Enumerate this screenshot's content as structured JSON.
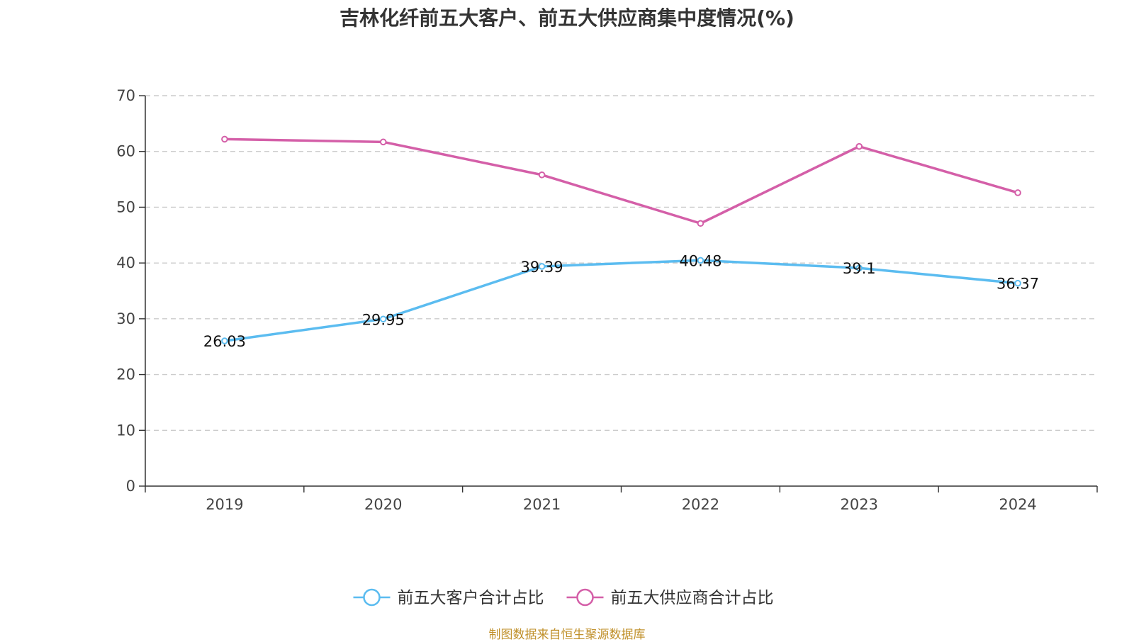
{
  "chart_data": {
    "type": "line",
    "title": "吉林化纤前五大客户、前五大供应商集中度情况(%)",
    "categories": [
      "2019",
      "2020",
      "2021",
      "2022",
      "2023",
      "2024"
    ],
    "ylim": [
      0,
      70
    ],
    "yticks": [
      0,
      10,
      20,
      30,
      40,
      50,
      60,
      70
    ],
    "grid": true,
    "legend_position": "bottom",
    "series": [
      {
        "name": "前五大客户合计占比",
        "color": "#5bbcf0",
        "values": [
          26.03,
          29.95,
          39.39,
          40.48,
          39.1,
          36.37
        ],
        "labels": [
          "26.03",
          "29.95",
          "39.39",
          "40.48",
          "39.1",
          "36.37"
        ],
        "show_labels": true
      },
      {
        "name": "前五大供应商合计占比",
        "color": "#d45fa8",
        "values": [
          62.2,
          61.7,
          55.8,
          47.1,
          60.9,
          52.6
        ],
        "labels": [],
        "show_labels": false
      }
    ]
  },
  "source_note": "制图数据来自恒生聚源数据库"
}
